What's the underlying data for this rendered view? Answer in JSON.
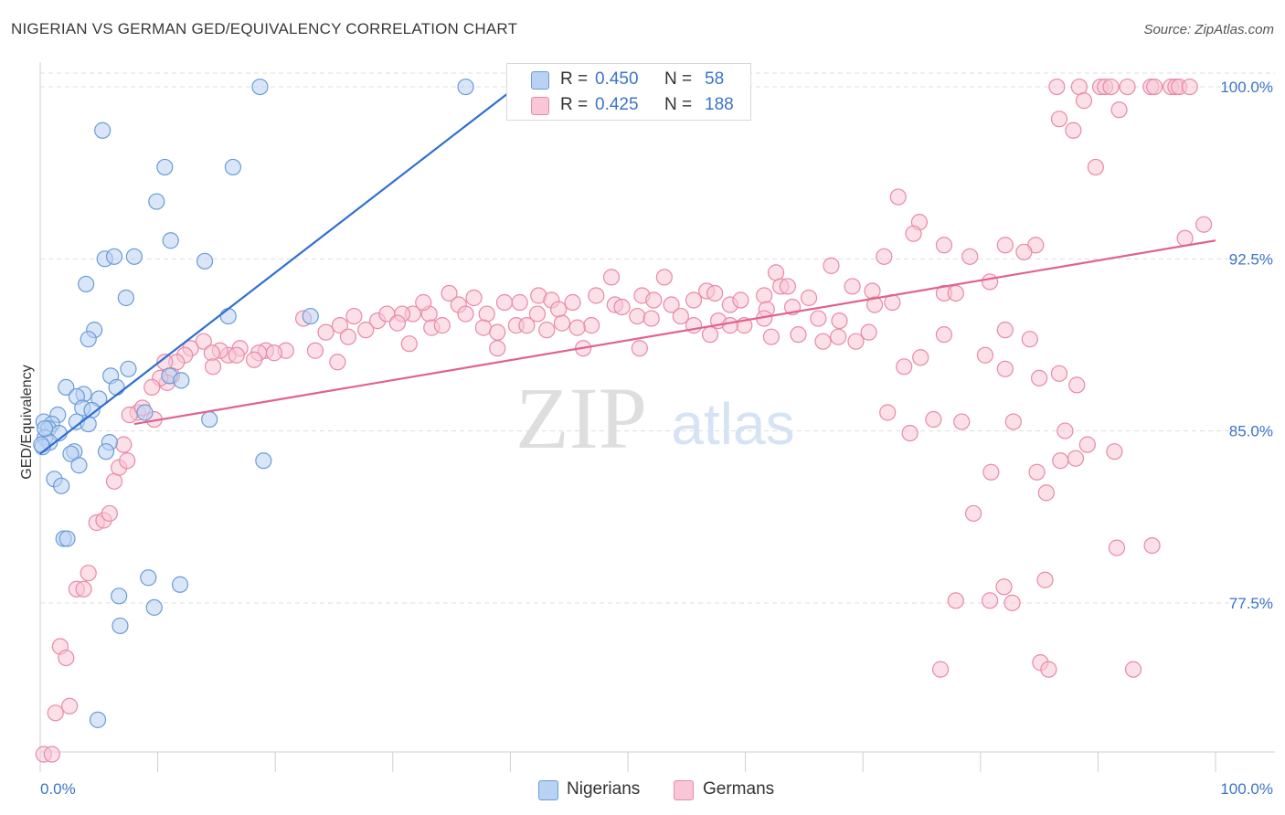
{
  "title": "NIGERIAN VS GERMAN GED/EQUIVALENCY CORRELATION CHART",
  "source": "Source: ZipAtlas.com",
  "watermark": {
    "zip": "ZIP",
    "atlas": "atlas"
  },
  "legend": {
    "rows": [
      {
        "r_label": "R =",
        "r_value": "0.450",
        "n_label": "N =",
        "n_value": "58"
      },
      {
        "r_label": "R =",
        "r_value": "0.425",
        "n_label": "N =",
        "n_value": "188"
      }
    ]
  },
  "bottom_legend": {
    "nigerians": "Nigerians",
    "germans": "Germans"
  },
  "colors": {
    "nigerian_fill": "#b9d1f3",
    "nigerian_stroke": "#6a9bd8",
    "nigerian_line": "#2f6fd0",
    "german_fill": "#f8c6d6",
    "german_stroke": "#e989a8",
    "german_line": "#e0628e",
    "value_text": "#3c74c8",
    "grid": "#dddddd"
  },
  "chart_data": {
    "type": "scatter",
    "title": "NIGERIAN VS GERMAN GED/EQUIVALENCY CORRELATION CHART",
    "xlabel": "",
    "ylabel": "GED/Equivalency",
    "xlim": [
      0,
      100
    ],
    "ylim": [
      71.0,
      100.6
    ],
    "x_tick_labels": [
      "0.0%",
      "100.0%"
    ],
    "y_ticks": [
      77.5,
      85.0,
      92.5,
      100.0
    ],
    "y_tick_labels": [
      "77.5%",
      "85.0%",
      "92.5%",
      "100.0%"
    ],
    "grid": true,
    "legend_position": "top-center",
    "series": [
      {
        "name": "Nigerians",
        "R": 0.45,
        "N": 58,
        "trend": {
          "x": [
            0.0,
            40.0
          ],
          "y": [
            84.0,
            99.8
          ]
        },
        "points": [
          [
            18.7,
            100.0
          ],
          [
            36.2,
            100.0
          ],
          [
            5.3,
            98.1
          ],
          [
            10.6,
            96.5
          ],
          [
            16.4,
            96.5
          ],
          [
            9.9,
            95.0
          ],
          [
            11.1,
            93.3
          ],
          [
            5.5,
            92.5
          ],
          [
            6.3,
            92.6
          ],
          [
            8.0,
            92.6
          ],
          [
            14.0,
            92.4
          ],
          [
            3.9,
            91.4
          ],
          [
            7.3,
            90.8
          ],
          [
            16.0,
            90.0
          ],
          [
            23.0,
            90.0
          ],
          [
            4.6,
            89.4
          ],
          [
            4.1,
            89.0
          ],
          [
            7.5,
            87.7
          ],
          [
            6.0,
            87.4
          ],
          [
            11.0,
            87.4
          ],
          [
            12.0,
            87.2
          ],
          [
            2.2,
            86.9
          ],
          [
            6.5,
            86.9
          ],
          [
            3.7,
            86.6
          ],
          [
            3.1,
            86.5
          ],
          [
            5.0,
            86.4
          ],
          [
            3.6,
            86.0
          ],
          [
            4.4,
            85.9
          ],
          [
            8.9,
            85.8
          ],
          [
            1.5,
            85.7
          ],
          [
            14.4,
            85.5
          ],
          [
            0.3,
            85.4
          ],
          [
            1.0,
            85.3
          ],
          [
            3.1,
            85.4
          ],
          [
            4.1,
            85.3
          ],
          [
            0.7,
            85.1
          ],
          [
            1.6,
            84.9
          ],
          [
            0.4,
            84.7
          ],
          [
            0.8,
            84.5
          ],
          [
            0.2,
            84.3
          ],
          [
            5.9,
            84.5
          ],
          [
            5.6,
            84.1
          ],
          [
            2.9,
            84.1
          ],
          [
            2.6,
            84.0
          ],
          [
            19.0,
            83.7
          ],
          [
            3.3,
            83.5
          ],
          [
            1.2,
            82.9
          ],
          [
            1.8,
            82.6
          ],
          [
            2.0,
            80.3
          ],
          [
            2.3,
            80.3
          ],
          [
            9.2,
            78.6
          ],
          [
            11.9,
            78.3
          ],
          [
            6.7,
            77.8
          ],
          [
            9.7,
            77.3
          ],
          [
            6.8,
            76.5
          ],
          [
            0.1,
            84.4
          ],
          [
            0.4,
            85.1
          ],
          [
            4.9,
            72.4
          ]
        ]
      },
      {
        "name": "Germans",
        "R": 0.425,
        "N": 188,
        "trend": {
          "x": [
            8.0,
            100.0
          ],
          "y": [
            85.3,
            93.3
          ]
        },
        "points": [
          [
            86.5,
            100.0
          ],
          [
            88.4,
            100.0
          ],
          [
            90.2,
            100.0
          ],
          [
            90.6,
            100.0
          ],
          [
            91.1,
            100.0
          ],
          [
            92.5,
            100.0
          ],
          [
            94.5,
            100.0
          ],
          [
            94.8,
            100.0
          ],
          [
            96.2,
            100.0
          ],
          [
            96.6,
            100.0
          ],
          [
            96.9,
            100.0
          ],
          [
            97.8,
            100.0
          ],
          [
            88.8,
            99.4
          ],
          [
            91.8,
            99.0
          ],
          [
            86.7,
            98.6
          ],
          [
            87.9,
            98.1
          ],
          [
            89.8,
            96.5
          ],
          [
            99.0,
            94.0
          ],
          [
            73.0,
            95.2
          ],
          [
            74.8,
            94.1
          ],
          [
            97.4,
            93.4
          ],
          [
            76.9,
            93.1
          ],
          [
            82.1,
            93.1
          ],
          [
            84.7,
            93.1
          ],
          [
            83.7,
            92.8
          ],
          [
            79.1,
            92.6
          ],
          [
            71.8,
            92.6
          ],
          [
            74.3,
            93.6
          ],
          [
            67.3,
            92.2
          ],
          [
            62.6,
            91.9
          ],
          [
            48.6,
            91.7
          ],
          [
            53.1,
            91.7
          ],
          [
            80.8,
            91.5
          ],
          [
            69.1,
            91.3
          ],
          [
            70.8,
            91.1
          ],
          [
            76.9,
            91.0
          ],
          [
            77.9,
            91.0
          ],
          [
            63.0,
            91.3
          ],
          [
            63.6,
            91.3
          ],
          [
            61.6,
            90.9
          ],
          [
            56.7,
            91.1
          ],
          [
            57.4,
            91.0
          ],
          [
            51.2,
            90.9
          ],
          [
            52.2,
            90.7
          ],
          [
            53.7,
            90.5
          ],
          [
            55.6,
            90.7
          ],
          [
            58.7,
            90.5
          ],
          [
            59.6,
            90.7
          ],
          [
            61.8,
            90.3
          ],
          [
            64.0,
            90.4
          ],
          [
            65.4,
            90.8
          ],
          [
            47.3,
            90.9
          ],
          [
            48.9,
            90.5
          ],
          [
            45.3,
            90.6
          ],
          [
            42.4,
            90.9
          ],
          [
            43.5,
            90.7
          ],
          [
            34.8,
            91.0
          ],
          [
            36.9,
            90.8
          ],
          [
            39.5,
            90.6
          ],
          [
            31.7,
            90.1
          ],
          [
            33.1,
            90.1
          ],
          [
            35.6,
            90.5
          ],
          [
            38.0,
            90.1
          ],
          [
            40.8,
            90.6
          ],
          [
            42.3,
            90.1
          ],
          [
            44.1,
            90.3
          ],
          [
            46.9,
            89.6
          ],
          [
            49.5,
            90.4
          ],
          [
            50.8,
            90.0
          ],
          [
            52.0,
            89.9
          ],
          [
            54.5,
            90.0
          ],
          [
            55.6,
            89.6
          ],
          [
            57.7,
            89.8
          ],
          [
            59.9,
            89.6
          ],
          [
            66.2,
            89.9
          ],
          [
            68.0,
            89.8
          ],
          [
            71.0,
            90.5
          ],
          [
            72.5,
            90.6
          ],
          [
            32.6,
            90.6
          ],
          [
            30.8,
            90.1
          ],
          [
            28.7,
            89.8
          ],
          [
            26.7,
            90.0
          ],
          [
            25.5,
            89.6
          ],
          [
            27.7,
            89.4
          ],
          [
            22.4,
            89.9
          ],
          [
            24.3,
            89.3
          ],
          [
            23.4,
            88.5
          ],
          [
            20.9,
            88.5
          ],
          [
            19.2,
            88.5
          ],
          [
            18.6,
            88.4
          ],
          [
            17.0,
            88.6
          ],
          [
            16.0,
            88.3
          ],
          [
            15.3,
            88.5
          ],
          [
            13.9,
            88.9
          ],
          [
            14.6,
            88.4
          ],
          [
            12.8,
            88.6
          ],
          [
            12.3,
            88.3
          ],
          [
            11.6,
            88.0
          ],
          [
            10.6,
            88.0
          ],
          [
            11.2,
            87.4
          ],
          [
            10.8,
            87.1
          ],
          [
            10.2,
            87.3
          ],
          [
            9.5,
            86.9
          ],
          [
            8.3,
            85.8
          ],
          [
            7.6,
            85.7
          ],
          [
            8.7,
            86.0
          ],
          [
            9.7,
            85.5
          ],
          [
            29.5,
            90.1
          ],
          [
            30.4,
            89.7
          ],
          [
            33.3,
            89.5
          ],
          [
            34.2,
            89.6
          ],
          [
            36.2,
            90.1
          ],
          [
            37.7,
            89.5
          ],
          [
            38.9,
            89.3
          ],
          [
            40.5,
            89.6
          ],
          [
            41.4,
            89.6
          ],
          [
            43.1,
            89.4
          ],
          [
            44.4,
            89.7
          ],
          [
            45.7,
            89.5
          ],
          [
            46.2,
            88.6
          ],
          [
            38.9,
            88.6
          ],
          [
            31.4,
            88.8
          ],
          [
            26.2,
            89.1
          ],
          [
            25.3,
            88.0
          ],
          [
            19.9,
            88.4
          ],
          [
            18.2,
            88.1
          ],
          [
            16.7,
            88.3
          ],
          [
            14.7,
            87.8
          ],
          [
            51.0,
            88.6
          ],
          [
            57.0,
            89.2
          ],
          [
            58.7,
            89.6
          ],
          [
            61.6,
            89.9
          ],
          [
            62.2,
            89.1
          ],
          [
            64.5,
            89.2
          ],
          [
            66.6,
            88.9
          ],
          [
            67.9,
            89.1
          ],
          [
            69.4,
            88.9
          ],
          [
            70.5,
            89.3
          ],
          [
            74.9,
            88.2
          ],
          [
            73.5,
            87.8
          ],
          [
            76.9,
            89.2
          ],
          [
            82.1,
            89.4
          ],
          [
            84.2,
            89.0
          ],
          [
            80.4,
            88.3
          ],
          [
            82.1,
            87.7
          ],
          [
            85.0,
            87.3
          ],
          [
            86.7,
            87.5
          ],
          [
            88.2,
            87.0
          ],
          [
            72.1,
            85.8
          ],
          [
            74.0,
            84.9
          ],
          [
            76.0,
            85.5
          ],
          [
            78.4,
            85.4
          ],
          [
            82.8,
            85.4
          ],
          [
            87.2,
            85.0
          ],
          [
            89.1,
            84.4
          ],
          [
            91.4,
            84.1
          ],
          [
            80.9,
            83.2
          ],
          [
            84.8,
            83.2
          ],
          [
            86.8,
            83.7
          ],
          [
            88.1,
            83.8
          ],
          [
            85.6,
            82.3
          ],
          [
            79.4,
            81.4
          ],
          [
            94.6,
            80.0
          ],
          [
            82.0,
            78.2
          ],
          [
            77.9,
            77.6
          ],
          [
            80.8,
            77.6
          ],
          [
            82.7,
            77.5
          ],
          [
            91.6,
            79.9
          ],
          [
            85.5,
            78.5
          ],
          [
            76.6,
            74.6
          ],
          [
            85.1,
            74.9
          ],
          [
            85.8,
            74.6
          ],
          [
            93.0,
            74.6
          ],
          [
            1.3,
            72.7
          ],
          [
            0.3,
            70.9
          ],
          [
            1.0,
            70.9
          ],
          [
            1.7,
            75.6
          ],
          [
            2.2,
            75.1
          ],
          [
            2.5,
            73.0
          ],
          [
            3.1,
            78.1
          ],
          [
            3.7,
            78.1
          ],
          [
            4.1,
            78.8
          ],
          [
            4.8,
            81.0
          ],
          [
            5.4,
            81.1
          ],
          [
            5.9,
            81.4
          ],
          [
            6.3,
            82.8
          ],
          [
            6.7,
            83.4
          ],
          [
            7.4,
            83.7
          ],
          [
            7.1,
            84.4
          ]
        ]
      }
    ]
  }
}
